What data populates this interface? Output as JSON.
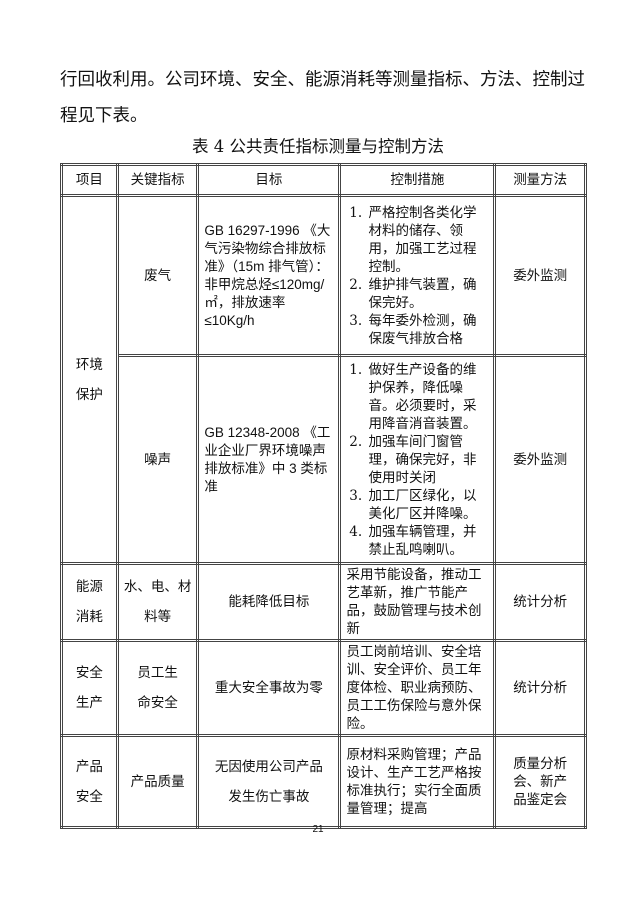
{
  "paragraph": "行回收利用。公司环境、安全、能源消耗等测量指标、方法、控制过程见下表。",
  "caption": "表 4 公共责任指标测量与控制方法",
  "headers": [
    "项目",
    "关键指标",
    "目标",
    "控制措施",
    "测量方法"
  ],
  "env": {
    "item": "环境保护",
    "gas": {
      "indicator": "废气",
      "target": "GB 16297-1996 《大气污染物综合排放标准》（15m 排气管）：非甲烷总烃≤120mg/㎡，排放速率≤10Kg/h",
      "measures": [
        "严格控制各类化学材料的储存、领用，加强工艺过程控制。",
        "维护排气装置，确保完好。",
        "每年委外检测，确保废气排放合格"
      ],
      "method": "委外监测"
    },
    "noise": {
      "indicator": "噪声",
      "target": "GB 12348-2008 《工业企业厂界环境噪声排放标准》中 3 类标准",
      "measures": [
        "做好生产设备的维护保养，降低噪音。必须要时，采用降音消音装置。",
        "加强车间门窗管理，确保完好，非使用时关闭",
        "加工厂区绿化，以美化厂区并降噪。",
        "加强车辆管理，并禁止乱鸣喇叭。"
      ],
      "method": "委外监测"
    }
  },
  "rows": [
    {
      "item": "能源消耗",
      "indicator": "水、电、材料等",
      "target": "能耗降低目标",
      "measures": "采用节能设备，推动工艺革新，推广节能产品，鼓励管理与技术创新",
      "method": "统计分析"
    },
    {
      "item": "安全生产",
      "indicator": "员工生命安全",
      "target": "重大安全事故为零",
      "measures": "员工岗前培训、安全培训、安全评价、员工年度体检、职业病预防、员工工伤保险与意外保险。",
      "method": "统计分析"
    },
    {
      "item": "产品安全",
      "indicator": "产品质量",
      "target": "无因使用公司产品发生伤亡事故",
      "measures": "原材料采购管理；产品设计、生产工艺严格按标准执行；实行全面质量管理；提高",
      "method": "质量分析会、新产品鉴定会"
    }
  ],
  "page_number": "21"
}
